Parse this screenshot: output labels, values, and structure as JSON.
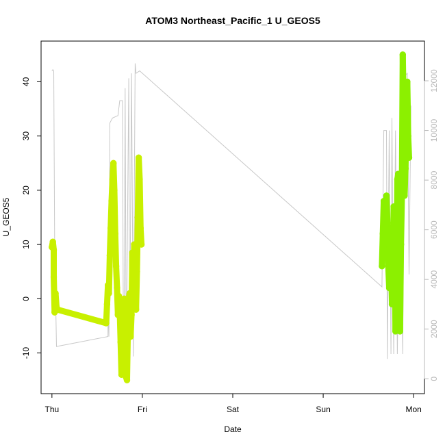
{
  "chart_data": {
    "type": "scatter",
    "title": "ATOM3 Northeast_Pacific_1 U_GEOS5",
    "xlabel": "Date",
    "ylabel": "U_GEOS5",
    "x_ticks": [
      "Thu",
      "Fri",
      "Sat",
      "Sun",
      "Mon"
    ],
    "x_range_days": [
      -0.12,
      4.12
    ],
    "ylim": [
      -17.5,
      47.5
    ],
    "y_ticks": [
      -10,
      0,
      10,
      20,
      30,
      40
    ],
    "y2lim": [
      -600,
      13600
    ],
    "y2_ticks": [
      0,
      2000,
      4000,
      6000,
      8000,
      10000,
      12000
    ],
    "grid": false,
    "legend": "none",
    "colors": {
      "grey_line": "#c8c8c8",
      "axis": "#000000",
      "right_axis": "#b8b8b8"
    },
    "gray_line": {
      "name": "",
      "points": [
        [
          0.0,
          12400
        ],
        [
          0.01,
          12450
        ],
        [
          0.02,
          12400
        ],
        [
          0.03,
          5500
        ],
        [
          0.05,
          1300
        ],
        [
          0.62,
          1700
        ],
        [
          0.62,
          3000
        ],
        [
          0.63,
          1700
        ],
        [
          0.64,
          10300
        ],
        [
          0.67,
          10500
        ],
        [
          0.73,
          10600
        ],
        [
          0.75,
          11200
        ],
        [
          0.78,
          11200
        ],
        [
          0.79,
          1700
        ],
        [
          0.8,
          2100
        ],
        [
          0.81,
          11700
        ],
        [
          0.82,
          2000
        ],
        [
          0.83,
          3700
        ],
        [
          0.85,
          12100
        ],
        [
          0.86,
          800
        ],
        [
          0.88,
          12300
        ],
        [
          0.9,
          900
        ],
        [
          0.92,
          12700
        ],
        [
          0.93,
          12300
        ],
        [
          0.97,
          12400
        ],
        [
          3.65,
          3700
        ],
        [
          3.67,
          10000
        ],
        [
          3.7,
          10000
        ],
        [
          3.71,
          800
        ],
        [
          3.73,
          10000
        ],
        [
          3.75,
          1000
        ],
        [
          3.76,
          10500
        ],
        [
          3.78,
          1000
        ],
        [
          3.8,
          10000
        ],
        [
          3.82,
          1000
        ],
        [
          3.85,
          10600
        ],
        [
          3.88,
          1000
        ],
        [
          3.9,
          12200
        ],
        [
          3.93,
          12300
        ],
        [
          3.95,
          4200
        ],
        [
          3.97,
          11000
        ]
      ]
    },
    "series": [
      {
        "name": "",
        "color": "#c8f000",
        "points": [
          [
            0.0,
            9.5
          ],
          [
            0.01,
            10.5
          ],
          [
            0.02,
            9.0
          ],
          [
            0.02,
            4.0
          ],
          [
            0.03,
            -2.5
          ],
          [
            0.04,
            1.0
          ],
          [
            0.05,
            -1.5
          ],
          [
            0.06,
            -2.0
          ],
          [
            0.6,
            -4.5
          ],
          [
            0.61,
            -1.0
          ],
          [
            0.62,
            2.5
          ],
          [
            0.63,
            1.0
          ],
          [
            0.64,
            8.0
          ],
          [
            0.65,
            13.0
          ],
          [
            0.66,
            18.0
          ],
          [
            0.67,
            22.0
          ],
          [
            0.68,
            25.0
          ],
          [
            0.69,
            20.0
          ],
          [
            0.7,
            12.0
          ],
          [
            0.71,
            6.0
          ],
          [
            0.72,
            2.0
          ],
          [
            0.73,
            -3.0
          ],
          [
            0.74,
            0.5
          ],
          [
            0.75,
            -2.0
          ],
          [
            0.76,
            -8.0
          ],
          [
            0.77,
            -14.0
          ],
          [
            0.78,
            -11.0
          ],
          [
            0.79,
            -6.0
          ],
          [
            0.8,
            0.0
          ],
          [
            0.81,
            -9.0
          ],
          [
            0.82,
            -14.5
          ],
          [
            0.83,
            -15.0
          ],
          [
            0.84,
            -5.0
          ],
          [
            0.85,
            0.0
          ],
          [
            0.86,
            1.0
          ],
          [
            0.87,
            -7.0
          ],
          [
            0.88,
            -3.0
          ],
          [
            0.89,
            8.5
          ],
          [
            0.9,
            0.0
          ],
          [
            0.91,
            10.0
          ],
          [
            0.92,
            2.0
          ],
          [
            0.93,
            -2.0
          ],
          [
            0.94,
            5.0
          ],
          [
            0.95,
            15.0
          ],
          [
            0.96,
            26.0
          ],
          [
            0.97,
            22.0
          ],
          [
            0.98,
            13.0
          ],
          [
            0.99,
            10.0
          ]
        ]
      },
      {
        "name": "",
        "color": "#8cf000",
        "points": [
          [
            3.65,
            6.0
          ],
          [
            3.66,
            12.0
          ],
          [
            3.67,
            18.0
          ],
          [
            3.68,
            17.0
          ],
          [
            3.69,
            10.0
          ],
          [
            3.7,
            19.0
          ],
          [
            3.71,
            14.0
          ],
          [
            3.72,
            6.0
          ],
          [
            3.73,
            2.0
          ],
          [
            3.74,
            13.0
          ],
          [
            3.75,
            9.0
          ],
          [
            3.76,
            -1.0
          ],
          [
            3.77,
            8.0
          ],
          [
            3.78,
            17.0
          ],
          [
            3.79,
            12.0
          ],
          [
            3.8,
            -6.0
          ],
          [
            3.81,
            2.0
          ],
          [
            3.82,
            22.0
          ],
          [
            3.83,
            23.0
          ],
          [
            3.84,
            18.0
          ],
          [
            3.85,
            -6.0
          ],
          [
            3.86,
            10.0
          ],
          [
            3.87,
            19.0
          ],
          [
            3.88,
            45.0
          ],
          [
            3.89,
            35.0
          ],
          [
            3.9,
            19.0
          ],
          [
            3.91,
            24.0
          ],
          [
            3.92,
            33.0
          ],
          [
            3.93,
            40.0
          ],
          [
            3.94,
            30.0
          ],
          [
            3.95,
            26.0
          ]
        ]
      }
    ]
  }
}
